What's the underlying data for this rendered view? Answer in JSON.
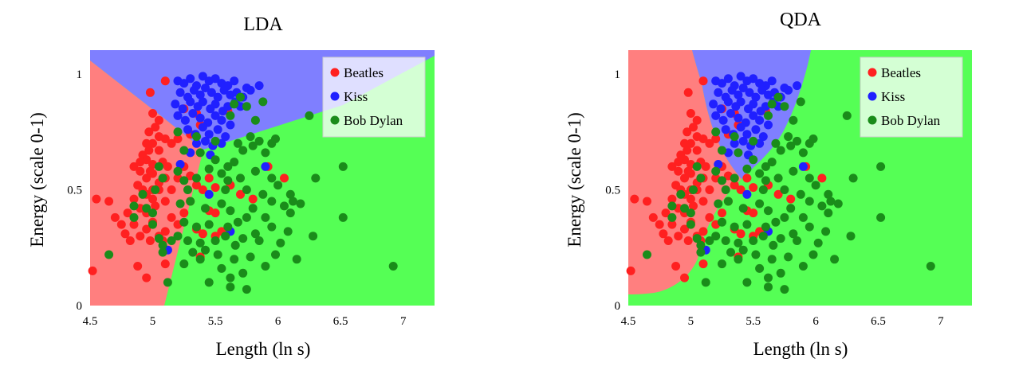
{
  "chart_data": [
    {
      "type": "scatter",
      "title": "LDA",
      "xlabel": "Length (ln s)",
      "ylabel": "Energy (scale 0-1)",
      "xlim": [
        4.5,
        7.25
      ],
      "ylim": [
        0,
        1.1
      ],
      "xticks": [
        "4.5",
        "5",
        "5.5",
        "6",
        "6.5",
        "7"
      ],
      "yticks": [
        "0",
        "0.5",
        "1"
      ],
      "legend": [
        "Beatles",
        "Kiss",
        "Bob Dylan"
      ],
      "legend_position": "top-right",
      "region_colors": [
        "#ff7f7f",
        "#7f7fff",
        "#55ff55"
      ],
      "series_colors": [
        "#ff2020",
        "#2020ff",
        "#1a8c1a"
      ]
    },
    {
      "type": "scatter",
      "title": "QDA",
      "xlabel": "Length (ln s)",
      "ylabel": "Energy (scale 0-1)",
      "xlim": [
        4.5,
        7.25
      ],
      "ylim": [
        0,
        1.1
      ],
      "xticks": [
        "4.5",
        "5",
        "5.5",
        "6",
        "6.5",
        "7"
      ],
      "yticks": [
        "0",
        "0.5",
        "1"
      ],
      "legend": [
        "Beatles",
        "Kiss",
        "Bob Dylan"
      ],
      "legend_position": "top-right",
      "region_colors": [
        "#ff7f7f",
        "#7f7fff",
        "#55ff55"
      ],
      "series_colors": [
        "#ff2020",
        "#2020ff",
        "#1a8c1a"
      ]
    }
  ],
  "series": [
    {
      "name": "Beatles",
      "points": [
        [
          5.1,
          0.97
        ],
        [
          4.98,
          0.92
        ],
        [
          5.0,
          0.83
        ],
        [
          5.05,
          0.8
        ],
        [
          5.02,
          0.77
        ],
        [
          4.97,
          0.75
        ],
        [
          5.05,
          0.73
        ],
        [
          5.1,
          0.72
        ],
        [
          4.95,
          0.7
        ],
        [
          5.0,
          0.7
        ],
        [
          4.97,
          0.67
        ],
        [
          4.92,
          0.65
        ],
        [
          5.05,
          0.67
        ],
        [
          5.15,
          0.7
        ],
        [
          5.2,
          0.72
        ],
        [
          5.25,
          0.85
        ],
        [
          5.35,
          0.83
        ],
        [
          5.38,
          0.78
        ],
        [
          5.6,
          0.84
        ],
        [
          5.3,
          0.74
        ],
        [
          4.95,
          0.63
        ],
        [
          4.9,
          0.62
        ],
        [
          4.85,
          0.6
        ],
        [
          4.9,
          0.58
        ],
        [
          4.95,
          0.55
        ],
        [
          5.0,
          0.57
        ],
        [
          5.05,
          0.53
        ],
        [
          5.1,
          0.55
        ],
        [
          4.88,
          0.52
        ],
        [
          4.92,
          0.5
        ],
        [
          4.95,
          0.48
        ],
        [
          5.0,
          0.5
        ],
        [
          5.05,
          0.5
        ],
        [
          5.0,
          0.46
        ],
        [
          4.85,
          0.46
        ],
        [
          4.9,
          0.42
        ],
        [
          4.95,
          0.4
        ],
        [
          5.02,
          0.43
        ],
        [
          5.1,
          0.45
        ],
        [
          5.15,
          0.5
        ],
        [
          5.2,
          0.55
        ],
        [
          5.25,
          0.6
        ],
        [
          5.3,
          0.56
        ],
        [
          5.35,
          0.52
        ],
        [
          5.4,
          0.5
        ],
        [
          4.8,
          0.4
        ],
        [
          4.75,
          0.35
        ],
        [
          4.7,
          0.38
        ],
        [
          4.78,
          0.31
        ],
        [
          4.85,
          0.35
        ],
        [
          4.9,
          0.3
        ],
        [
          4.95,
          0.33
        ],
        [
          5.0,
          0.36
        ],
        [
          5.05,
          0.3
        ],
        [
          5.1,
          0.32
        ],
        [
          5.15,
          0.38
        ],
        [
          5.2,
          0.35
        ],
        [
          5.25,
          0.4
        ],
        [
          5.3,
          0.45
        ],
        [
          4.55,
          0.46
        ],
        [
          4.65,
          0.45
        ],
        [
          4.82,
          0.28
        ],
        [
          4.98,
          0.28
        ],
        [
          5.08,
          0.28
        ],
        [
          4.88,
          0.17
        ],
        [
          4.95,
          0.12
        ],
        [
          4.52,
          0.15
        ],
        [
          5.35,
          0.33
        ],
        [
          5.38,
          0.21
        ],
        [
          5.4,
          0.31
        ],
        [
          5.45,
          0.41
        ],
        [
          5.5,
          0.4
        ],
        [
          5.5,
          0.3
        ],
        [
          5.55,
          0.32
        ],
        [
          5.62,
          0.52
        ],
        [
          5.7,
          0.48
        ],
        [
          5.8,
          0.46
        ],
        [
          6.05,
          0.55
        ],
        [
          5.92,
          0.6
        ],
        [
          5.1,
          0.18
        ],
        [
          5.08,
          0.62
        ],
        [
          5.12,
          0.6
        ],
        [
          5.0,
          0.61
        ],
        [
          4.98,
          0.58
        ],
        [
          5.45,
          0.55
        ],
        [
          5.5,
          0.51
        ]
      ]
    },
    {
      "name": "Kiss",
      "points": [
        [
          5.2,
          0.97
        ],
        [
          5.25,
          0.96
        ],
        [
          5.3,
          0.98
        ],
        [
          5.35,
          0.95
        ],
        [
          5.4,
          0.99
        ],
        [
          5.45,
          0.97
        ],
        [
          5.5,
          0.98
        ],
        [
          5.55,
          0.96
        ],
        [
          5.6,
          0.95
        ],
        [
          5.65,
          0.97
        ],
        [
          5.75,
          0.94
        ],
        [
          5.85,
          0.95
        ],
        [
          5.22,
          0.92
        ],
        [
          5.28,
          0.9
        ],
        [
          5.33,
          0.93
        ],
        [
          5.38,
          0.91
        ],
        [
          5.42,
          0.94
        ],
        [
          5.47,
          0.92
        ],
        [
          5.52,
          0.9
        ],
        [
          5.57,
          0.93
        ],
        [
          5.62,
          0.91
        ],
        [
          5.67,
          0.92
        ],
        [
          5.72,
          0.9
        ],
        [
          5.78,
          0.93
        ],
        [
          5.18,
          0.87
        ],
        [
          5.24,
          0.85
        ],
        [
          5.3,
          0.88
        ],
        [
          5.36,
          0.86
        ],
        [
          5.4,
          0.88
        ],
        [
          5.46,
          0.85
        ],
        [
          5.5,
          0.87
        ],
        [
          5.56,
          0.84
        ],
        [
          5.6,
          0.86
        ],
        [
          5.66,
          0.88
        ],
        [
          5.7,
          0.86
        ],
        [
          5.2,
          0.82
        ],
        [
          5.26,
          0.8
        ],
        [
          5.32,
          0.83
        ],
        [
          5.38,
          0.81
        ],
        [
          5.44,
          0.79
        ],
        [
          5.5,
          0.82
        ],
        [
          5.55,
          0.8
        ],
        [
          5.62,
          0.78
        ],
        [
          5.28,
          0.76
        ],
        [
          5.34,
          0.74
        ],
        [
          5.4,
          0.77
        ],
        [
          5.45,
          0.74
        ],
        [
          5.52,
          0.76
        ],
        [
          5.58,
          0.73
        ],
        [
          5.35,
          0.7
        ],
        [
          5.42,
          0.71
        ],
        [
          5.48,
          0.69
        ],
        [
          5.55,
          0.7
        ],
        [
          5.3,
          0.66
        ],
        [
          5.46,
          0.65
        ],
        [
          5.22,
          0.61
        ],
        [
          5.9,
          0.6
        ],
        [
          5.45,
          0.48
        ],
        [
          5.62,
          0.32
        ],
        [
          5.12,
          0.24
        ]
      ]
    },
    {
      "name": "Bob Dylan",
      "points": [
        [
          5.65,
          0.87
        ],
        [
          5.75,
          0.86
        ],
        [
          5.88,
          0.88
        ],
        [
          5.82,
          0.8
        ],
        [
          5.7,
          0.9
        ],
        [
          5.62,
          0.82
        ],
        [
          6.25,
          0.82
        ],
        [
          5.2,
          0.75
        ],
        [
          5.35,
          0.73
        ],
        [
          5.5,
          0.71
        ],
        [
          5.68,
          0.7
        ],
        [
          5.78,
          0.73
        ],
        [
          5.85,
          0.71
        ],
        [
          5.95,
          0.7
        ],
        [
          5.98,
          0.72
        ],
        [
          5.72,
          0.67
        ],
        [
          5.8,
          0.69
        ],
        [
          5.9,
          0.66
        ],
        [
          5.25,
          0.67
        ],
        [
          5.38,
          0.66
        ],
        [
          5.5,
          0.63
        ],
        [
          5.6,
          0.6
        ],
        [
          5.65,
          0.62
        ],
        [
          5.05,
          0.6
        ],
        [
          5.08,
          0.55
        ],
        [
          5.02,
          0.5
        ],
        [
          5.2,
          0.58
        ],
        [
          5.25,
          0.54
        ],
        [
          5.35,
          0.55
        ],
        [
          5.45,
          0.59
        ],
        [
          5.55,
          0.57
        ],
        [
          5.6,
          0.54
        ],
        [
          5.7,
          0.55
        ],
        [
          5.82,
          0.58
        ],
        [
          5.95,
          0.55
        ],
        [
          6.0,
          0.52
        ],
        [
          5.58,
          0.5
        ],
        [
          5.75,
          0.5
        ],
        [
          5.88,
          0.48
        ],
        [
          5.95,
          0.45
        ],
        [
          6.05,
          0.43
        ],
        [
          6.1,
          0.48
        ],
        [
          6.12,
          0.45
        ],
        [
          6.3,
          0.55
        ],
        [
          6.52,
          0.6
        ],
        [
          5.3,
          0.45
        ],
        [
          5.42,
          0.42
        ],
        [
          5.55,
          0.44
        ],
        [
          5.62,
          0.41
        ],
        [
          5.8,
          0.42
        ],
        [
          5.9,
          0.38
        ],
        [
          6.1,
          0.4
        ],
        [
          6.18,
          0.44
        ],
        [
          4.95,
          0.42
        ],
        [
          4.85,
          0.38
        ],
        [
          5.0,
          0.35
        ],
        [
          5.05,
          0.29
        ],
        [
          5.25,
          0.36
        ],
        [
          5.35,
          0.34
        ],
        [
          5.45,
          0.35
        ],
        [
          5.6,
          0.34
        ],
        [
          5.68,
          0.36
        ],
        [
          5.75,
          0.38
        ],
        [
          5.82,
          0.31
        ],
        [
          5.95,
          0.34
        ],
        [
          6.08,
          0.32
        ],
        [
          5.2,
          0.3
        ],
        [
          5.28,
          0.28
        ],
        [
          5.38,
          0.27
        ],
        [
          5.5,
          0.28
        ],
        [
          5.58,
          0.3
        ],
        [
          5.66,
          0.26
        ],
        [
          5.72,
          0.29
        ],
        [
          5.85,
          0.28
        ],
        [
          6.02,
          0.27
        ],
        [
          5.08,
          0.26
        ],
        [
          5.15,
          0.28
        ],
        [
          5.32,
          0.23
        ],
        [
          5.42,
          0.24
        ],
        [
          5.52,
          0.22
        ],
        [
          5.65,
          0.2
        ],
        [
          5.78,
          0.21
        ],
        [
          5.9,
          0.17
        ],
        [
          5.98,
          0.22
        ],
        [
          6.15,
          0.2
        ],
        [
          6.28,
          0.3
        ],
        [
          5.25,
          0.18
        ],
        [
          5.38,
          0.2
        ],
        [
          5.55,
          0.16
        ],
        [
          5.62,
          0.12
        ],
        [
          5.72,
          0.14
        ],
        [
          5.45,
          0.1
        ],
        [
          5.62,
          0.08
        ],
        [
          5.75,
          0.07
        ],
        [
          5.08,
          0.23
        ],
        [
          5.12,
          0.1
        ],
        [
          4.65,
          0.22
        ],
        [
          6.52,
          0.38
        ],
        [
          6.92,
          0.17
        ],
        [
          4.92,
          0.48
        ],
        [
          4.85,
          0.43
        ],
        [
          5.0,
          0.4
        ],
        [
          5.28,
          0.5
        ],
        [
          5.22,
          0.44
        ]
      ]
    }
  ]
}
